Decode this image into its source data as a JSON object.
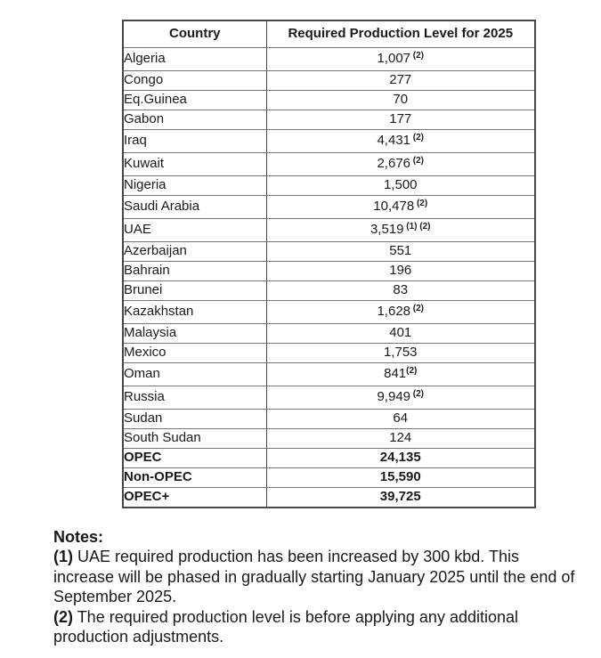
{
  "table": {
    "headers": [
      "Country",
      "Required Production Level for 2025"
    ],
    "rows": [
      {
        "country": "Algeria",
        "value": "1,007",
        "sup": " (2)",
        "bold": false
      },
      {
        "country": "Congo",
        "value": "277",
        "sup": "",
        "bold": false
      },
      {
        "country": "Eq.Guinea",
        "value": "70",
        "sup": "",
        "bold": false
      },
      {
        "country": "Gabon",
        "value": "177",
        "sup": "",
        "bold": false
      },
      {
        "country": "Iraq",
        "value": "4,431",
        "sup": " (2)",
        "bold": false
      },
      {
        "country": "Kuwait",
        "value": "2,676",
        "sup": " (2)",
        "bold": false
      },
      {
        "country": "Nigeria",
        "value": "1,500",
        "sup": "",
        "bold": false
      },
      {
        "country": "Saudi Arabia",
        "value": "10,478",
        "sup": " (2)",
        "bold": false
      },
      {
        "country": "UAE",
        "value": "3,519",
        "sup": " (1) (2)",
        "bold": false
      },
      {
        "country": "Azerbaijan",
        "value": "551",
        "sup": "",
        "bold": false
      },
      {
        "country": "Bahrain",
        "value": "196",
        "sup": "",
        "bold": false
      },
      {
        "country": "Brunei",
        "value": "83",
        "sup": "",
        "bold": false
      },
      {
        "country": "Kazakhstan",
        "value": "1,628",
        "sup": " (2)",
        "bold": false
      },
      {
        "country": "Malaysia",
        "value": "401",
        "sup": "",
        "bold": false
      },
      {
        "country": "Mexico",
        "value": "1,753",
        "sup": "",
        "bold": false
      },
      {
        "country": "Oman",
        "value": "841",
        "sup": "(2)",
        "bold": false
      },
      {
        "country": "Russia",
        "value": "9,949",
        "sup": " (2)",
        "bold": false
      },
      {
        "country": "Sudan",
        "value": "64",
        "sup": "",
        "bold": false
      },
      {
        "country": "South Sudan",
        "value": "124",
        "sup": "",
        "bold": false
      },
      {
        "country": "OPEC",
        "value": "24,135",
        "sup": "",
        "bold": true
      },
      {
        "country": "Non-OPEC",
        "value": "15,590",
        "sup": "",
        "bold": true
      },
      {
        "country": "OPEC+",
        "value": "39,725",
        "sup": "",
        "bold": true
      }
    ]
  },
  "notes": {
    "title": "Notes:",
    "items": [
      {
        "label": "(1)",
        "text": "UAE required production has been increased by 300 kbd. This increase will be phased in gradually starting January 2025 until the end of September 2025."
      },
      {
        "label": "(2)",
        "text": "The required production level is before applying any additional production adjustments."
      }
    ]
  },
  "colors": {
    "background": "#ffffff",
    "text": "#1a1a1a",
    "border_outer": "#474747",
    "border_inner_horizontal": "#767676"
  }
}
